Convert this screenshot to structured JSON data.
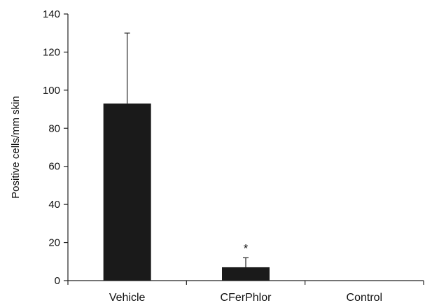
{
  "chart_data": {
    "type": "bar",
    "categories": [
      "Vehicle",
      "CFerPhlor",
      "Control"
    ],
    "values": [
      93,
      7,
      0
    ],
    "error_plus": [
      37,
      5,
      0
    ],
    "annotations": [
      "",
      "*",
      ""
    ],
    "title": "",
    "xlabel": "",
    "ylabel": "Positive cells/mm skin",
    "ylim": [
      0,
      140
    ],
    "yticks": [
      0,
      20,
      40,
      60,
      80,
      100,
      120,
      140
    ],
    "grid": false,
    "legend": "none",
    "bar_color": "#1a1a1a",
    "axis_color": "#222222"
  }
}
